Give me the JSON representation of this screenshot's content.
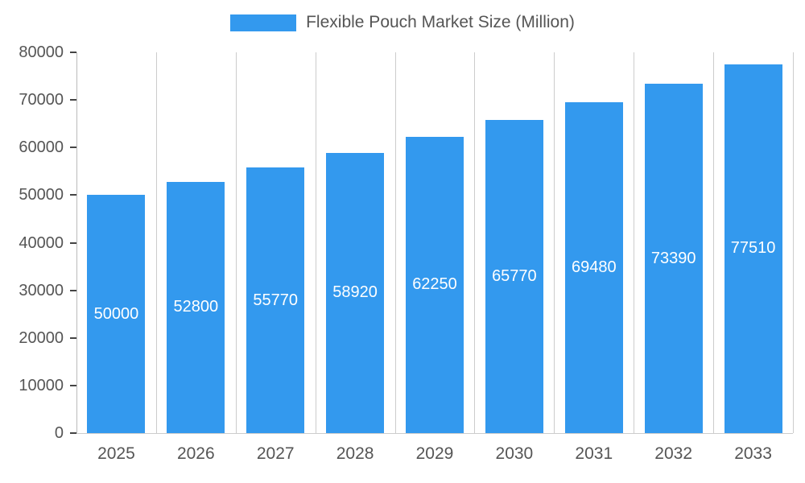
{
  "chart_data": {
    "type": "bar",
    "title": "Flexible Pouch Market Size (Million)",
    "categories": [
      "2025",
      "2026",
      "2027",
      "2028",
      "2029",
      "2030",
      "2031",
      "2032",
      "2033"
    ],
    "values": [
      50000,
      52800,
      55770,
      58920,
      62250,
      65770,
      69480,
      73390,
      77510
    ],
    "xlabel": "",
    "ylabel": "",
    "ylim": [
      0,
      80000
    ],
    "yticks": [
      0,
      10000,
      20000,
      30000,
      40000,
      50000,
      60000,
      70000,
      80000
    ],
    "grid": "vertical-category-boundaries",
    "legend_position": "top-center",
    "value_labels": "inside-center-white",
    "bar_color": "#3399EE",
    "value_label_color": "#ffffff",
    "axis_text_color": "#555555",
    "gridline_color": "#cccccc"
  }
}
